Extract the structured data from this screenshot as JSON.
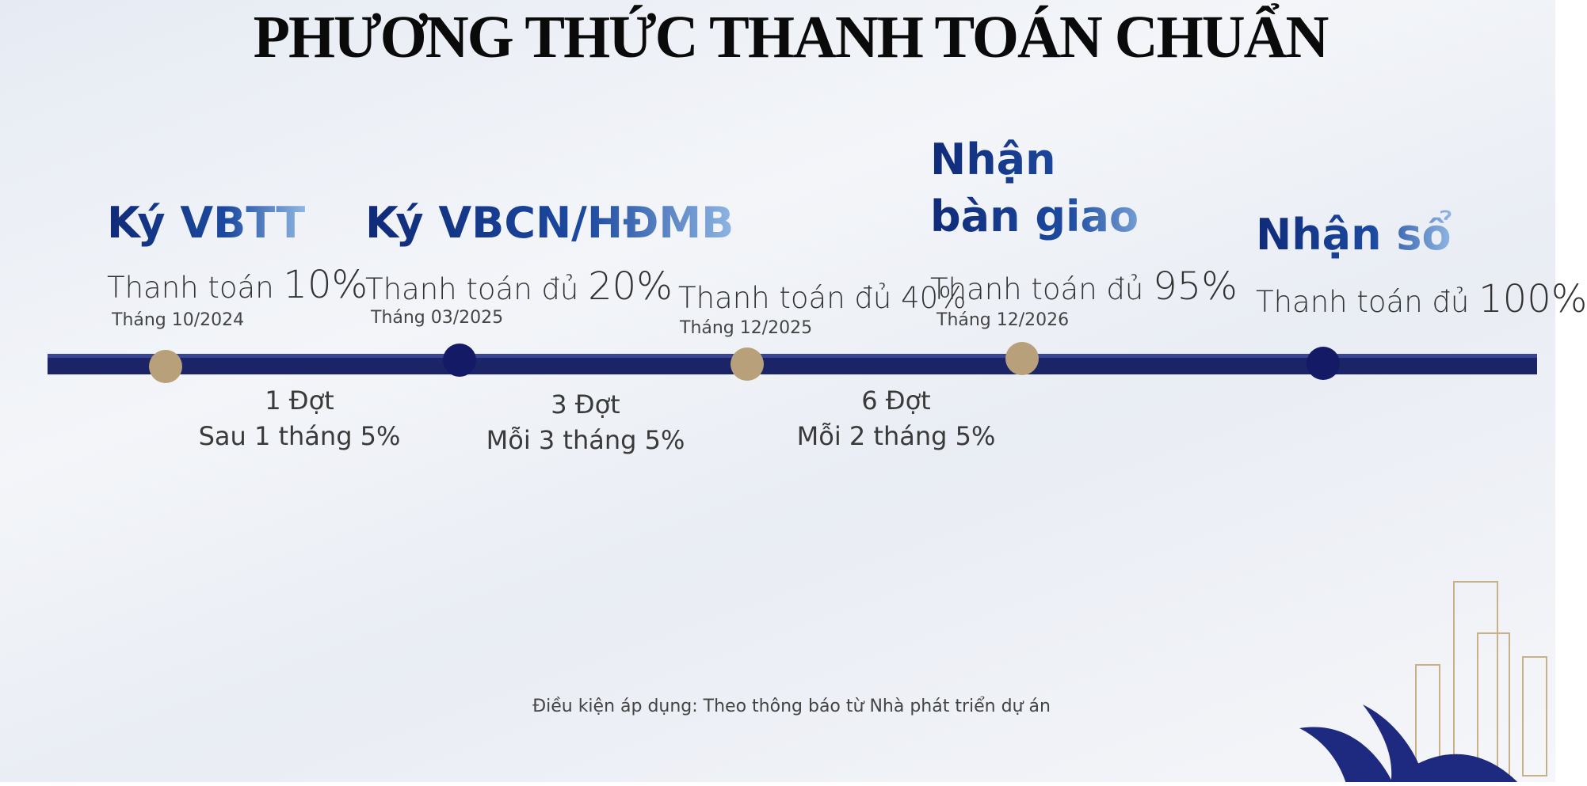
{
  "title": "PHƯƠNG THỨC THANH TOÁN CHUẨN",
  "milestones": [
    {
      "heading": "Ký VBTT",
      "label": "Thanh toán",
      "percent": "10%",
      "date": "Tháng 10/2024"
    },
    {
      "heading": "Ký VBCN/HĐMB",
      "label": "Thanh toán đủ",
      "percent": "20%",
      "date": "Tháng 03/2025"
    },
    {
      "label": "Thanh toán đủ",
      "percent": "40%",
      "date": "Tháng 12/2025"
    },
    {
      "heading": "Nhận bàn giao",
      "label": "Thanh toán đủ",
      "percent": "95%",
      "date": "Tháng 12/2026"
    },
    {
      "heading": "Nhận sổ",
      "label": "Thanh toán đủ",
      "percent": "100%"
    }
  ],
  "intervals": [
    {
      "count": "1 Đợt",
      "schedule": "Sau 1 tháng 5%"
    },
    {
      "count": "3 Đợt",
      "schedule": "Mỗi 3 tháng 5%"
    },
    {
      "count": "6 Đợt",
      "schedule": "Mỗi 2 tháng 5%"
    }
  ],
  "footnote": "Điều kiện áp dụng: Theo thông báo từ Nhà phát triển dự án"
}
